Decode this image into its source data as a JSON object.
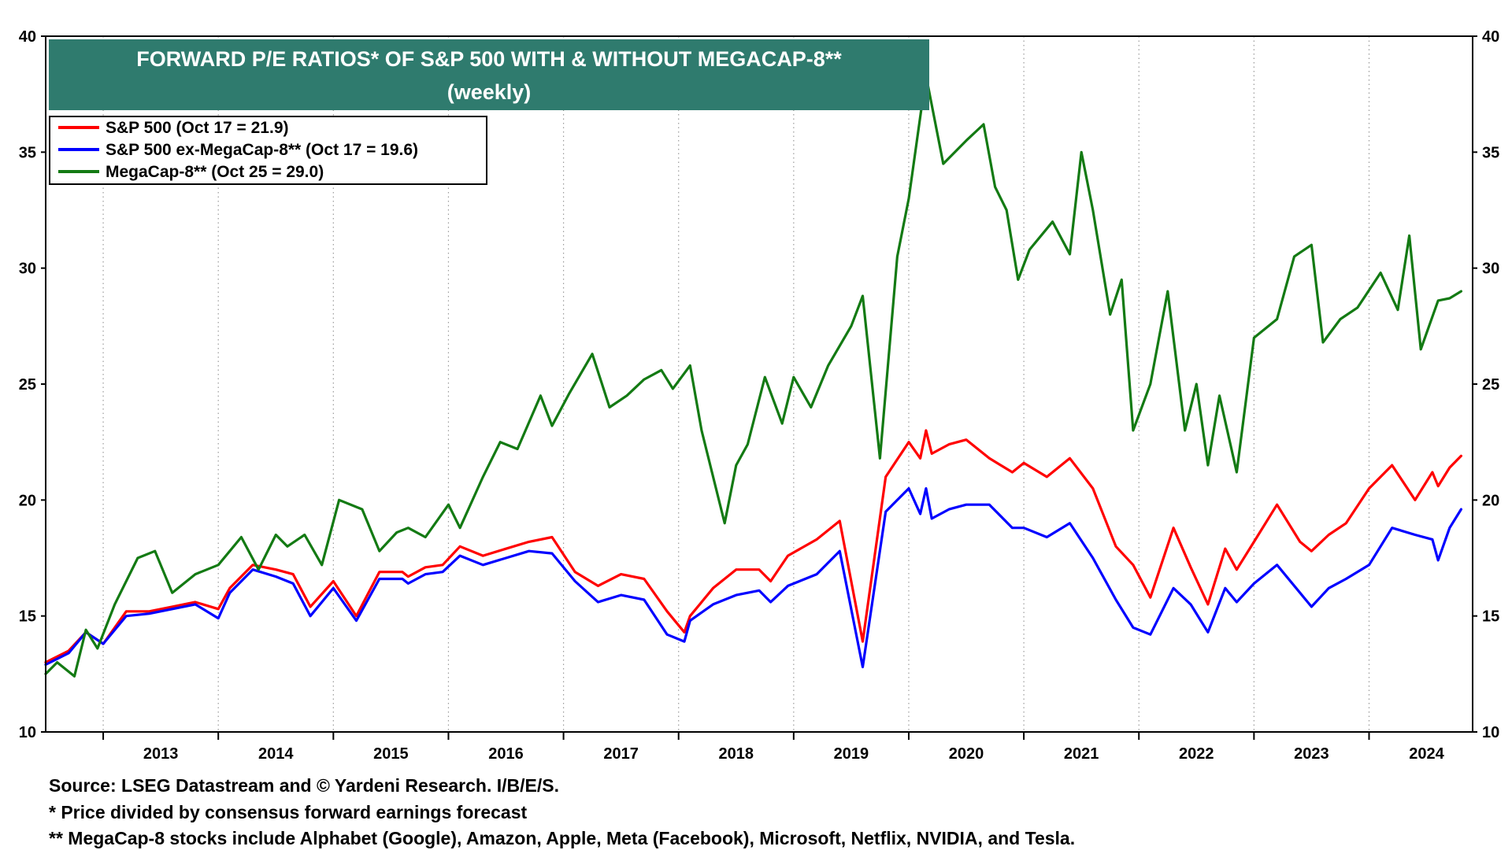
{
  "chart_data": {
    "type": "line",
    "title": "FORWARD P/E RATIOS* OF S&P 500 WITH & WITHOUT  MEGACAP-8**",
    "subtitle": "(weekly)",
    "xlabel": "",
    "ylabel": "",
    "xlim": [
      2012.5,
      2024.9
    ],
    "ylim": [
      10,
      40
    ],
    "yticks": [
      10,
      15,
      20,
      25,
      30,
      35,
      40
    ],
    "xtick_labels": [
      "2013",
      "2014",
      "2015",
      "2016",
      "2017",
      "2018",
      "2019",
      "2020",
      "2021",
      "2022",
      "2023",
      "2024"
    ],
    "x_year_boundaries": [
      2012.5,
      2013,
      2014,
      2015,
      2016,
      2017,
      2018,
      2019,
      2020,
      2021,
      2022,
      2023,
      2024
    ],
    "grid": {
      "vertical": "dotted",
      "horizontal": false
    },
    "right_axis_mirrors_left": true,
    "legend_position": "top-left",
    "series": [
      {
        "name": "S&P 500 (Oct 17 = 21.9)",
        "color": "#ff0000",
        "x": [
          2012.5,
          2012.7,
          2012.85,
          2013.0,
          2013.2,
          2013.4,
          2013.6,
          2013.8,
          2014.0,
          2014.1,
          2014.3,
          2014.5,
          2014.65,
          2014.8,
          2015.0,
          2015.2,
          2015.4,
          2015.6,
          2015.65,
          2015.8,
          2015.95,
          2016.1,
          2016.3,
          2016.5,
          2016.7,
          2016.9,
          2017.1,
          2017.3,
          2017.5,
          2017.7,
          2017.9,
          2018.05,
          2018.1,
          2018.3,
          2018.5,
          2018.7,
          2018.8,
          2018.95,
          2019.2,
          2019.4,
          2019.6,
          2019.8,
          2020.0,
          2020.1,
          2020.15,
          2020.2,
          2020.35,
          2020.5,
          2020.7,
          2020.9,
          2021.0,
          2021.2,
          2021.4,
          2021.6,
          2021.8,
          2021.95,
          2022.1,
          2022.3,
          2022.45,
          2022.6,
          2022.75,
          2022.85,
          2023.0,
          2023.2,
          2023.4,
          2023.5,
          2023.65,
          2023.8,
          2024.0,
          2024.2,
          2024.4,
          2024.55,
          2024.6,
          2024.7,
          2024.8
        ],
        "values": [
          13.0,
          13.5,
          14.3,
          13.8,
          15.2,
          15.2,
          15.4,
          15.6,
          15.3,
          16.2,
          17.2,
          17.0,
          16.8,
          15.4,
          16.5,
          15.0,
          16.9,
          16.9,
          16.7,
          17.1,
          17.2,
          18.0,
          17.6,
          17.9,
          18.2,
          18.4,
          16.9,
          16.3,
          16.8,
          16.6,
          15.2,
          14.3,
          15.0,
          16.2,
          17.0,
          17.0,
          16.5,
          17.6,
          18.3,
          19.1,
          13.9,
          21.0,
          22.5,
          21.8,
          23.0,
          22.0,
          22.4,
          22.6,
          21.8,
          21.2,
          21.6,
          21.0,
          21.8,
          20.5,
          18.0,
          17.2,
          15.8,
          18.8,
          17.1,
          15.5,
          17.9,
          17.0,
          18.2,
          19.8,
          18.2,
          17.8,
          18.5,
          19.0,
          20.5,
          21.5,
          20.0,
          21.2,
          20.6,
          21.4,
          21.9
        ]
      },
      {
        "name": "S&P 500 ex-MegaCap-8** (Oct 17 = 19.6)",
        "color": "#0000ff",
        "x": [
          2012.5,
          2012.7,
          2012.85,
          2013.0,
          2013.2,
          2013.4,
          2013.6,
          2013.8,
          2014.0,
          2014.1,
          2014.3,
          2014.5,
          2014.65,
          2014.8,
          2015.0,
          2015.2,
          2015.4,
          2015.6,
          2015.65,
          2015.8,
          2015.95,
          2016.1,
          2016.3,
          2016.5,
          2016.7,
          2016.9,
          2017.1,
          2017.3,
          2017.5,
          2017.7,
          2017.9,
          2018.05,
          2018.1,
          2018.3,
          2018.5,
          2018.7,
          2018.8,
          2018.95,
          2019.2,
          2019.4,
          2019.6,
          2019.8,
          2020.0,
          2020.1,
          2020.15,
          2020.2,
          2020.35,
          2020.5,
          2020.7,
          2020.9,
          2021.0,
          2021.2,
          2021.4,
          2021.6,
          2021.8,
          2021.95,
          2022.1,
          2022.3,
          2022.45,
          2022.6,
          2022.75,
          2022.85,
          2023.0,
          2023.2,
          2023.4,
          2023.5,
          2023.65,
          2023.8,
          2024.0,
          2024.2,
          2024.4,
          2024.55,
          2024.6,
          2024.7,
          2024.8
        ],
        "values": [
          12.9,
          13.4,
          14.3,
          13.8,
          15.0,
          15.1,
          15.3,
          15.5,
          14.9,
          16.0,
          17.0,
          16.7,
          16.4,
          15.0,
          16.2,
          14.8,
          16.6,
          16.6,
          16.4,
          16.8,
          16.9,
          17.6,
          17.2,
          17.5,
          17.8,
          17.7,
          16.5,
          15.6,
          15.9,
          15.7,
          14.2,
          13.9,
          14.8,
          15.5,
          15.9,
          16.1,
          15.6,
          16.3,
          16.8,
          17.8,
          12.8,
          19.5,
          20.5,
          19.4,
          20.5,
          19.2,
          19.6,
          19.8,
          19.8,
          18.8,
          18.8,
          18.4,
          19.0,
          17.5,
          15.7,
          14.5,
          14.2,
          16.2,
          15.5,
          14.3,
          16.2,
          15.6,
          16.4,
          17.2,
          16.0,
          15.4,
          16.2,
          16.6,
          17.2,
          18.8,
          18.5,
          18.3,
          17.4,
          18.8,
          19.6
        ]
      },
      {
        "name": "MegaCap-8** (Oct 25 = 29.0)",
        "color": "#137a13",
        "x": [
          2012.5,
          2012.6,
          2012.75,
          2012.85,
          2012.95,
          2013.1,
          2013.3,
          2013.45,
          2013.6,
          2013.8,
          2014.0,
          2014.2,
          2014.35,
          2014.5,
          2014.6,
          2014.75,
          2014.9,
          2015.05,
          2015.25,
          2015.4,
          2015.55,
          2015.65,
          2015.8,
          2016.0,
          2016.1,
          2016.3,
          2016.45,
          2016.6,
          2016.8,
          2016.9,
          2017.05,
          2017.25,
          2017.4,
          2017.55,
          2017.7,
          2017.85,
          2017.95,
          2018.1,
          2018.2,
          2018.4,
          2018.5,
          2018.6,
          2018.75,
          2018.9,
          2019.0,
          2019.15,
          2019.3,
          2019.5,
          2019.6,
          2019.75,
          2019.9,
          2020.0,
          2020.15,
          2020.3,
          2020.5,
          2020.65,
          2020.75,
          2020.85,
          2020.95,
          2021.05,
          2021.25,
          2021.4,
          2021.5,
          2021.6,
          2021.75,
          2021.85,
          2021.95,
          2022.1,
          2022.25,
          2022.4,
          2022.5,
          2022.6,
          2022.7,
          2022.85,
          2023.0,
          2023.2,
          2023.35,
          2023.5,
          2023.6,
          2023.75,
          2023.9,
          2024.1,
          2024.25,
          2024.35,
          2024.45,
          2024.6,
          2024.7,
          2024.8
        ],
        "values": [
          12.5,
          13.0,
          12.4,
          14.4,
          13.6,
          15.5,
          17.5,
          17.8,
          16.0,
          16.8,
          17.2,
          18.4,
          17.0,
          18.5,
          18.0,
          18.5,
          17.2,
          20.0,
          19.6,
          17.8,
          18.6,
          18.8,
          18.4,
          19.8,
          18.8,
          21.0,
          22.5,
          22.2,
          24.5,
          23.2,
          24.6,
          26.3,
          24.0,
          24.5,
          25.2,
          25.6,
          24.8,
          25.8,
          23.0,
          19.0,
          21.5,
          22.4,
          25.3,
          23.3,
          25.3,
          24.0,
          25.8,
          27.5,
          28.8,
          21.8,
          30.5,
          33.0,
          38.3,
          34.5,
          35.5,
          36.2,
          33.5,
          32.5,
          29.5,
          30.8,
          32.0,
          30.6,
          35.0,
          32.5,
          28.0,
          29.5,
          23.0,
          25.0,
          29.0,
          23.0,
          25.0,
          21.5,
          24.5,
          21.2,
          27.0,
          27.8,
          30.5,
          31.0,
          26.8,
          27.8,
          28.3,
          29.8,
          28.2,
          31.4,
          26.5,
          28.6,
          28.7,
          29.0
        ]
      }
    ],
    "footnotes": [
      "Source: LSEG Datastream and © Yardeni Research. I/B/E/S.",
      "* Price divided by consensus forward earnings forecast",
      "** MegaCap-8 stocks include Alphabet (Google), Amazon, Apple, Meta (Facebook), Microsoft, Netflix, NVIDIA, and Tesla."
    ]
  },
  "colors": {
    "title_bg": "#2f7b6e",
    "title_text": "#ffffff",
    "frame": "#000000",
    "grid": "#9a9a9a"
  }
}
